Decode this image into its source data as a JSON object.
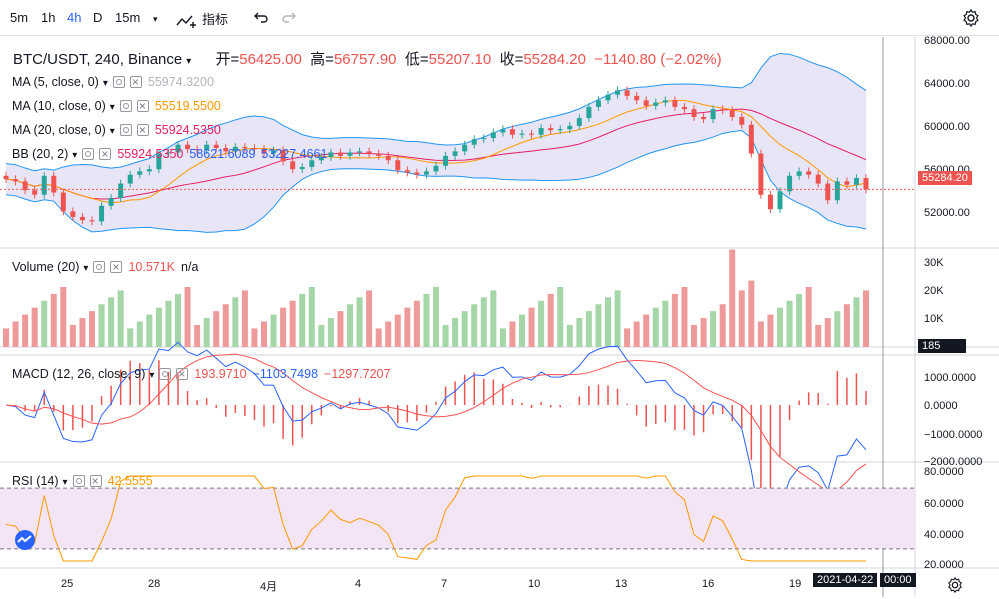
{
  "toolbar": {
    "timeframes": [
      "5m",
      "1h",
      "4h",
      "D",
      "15m"
    ],
    "active_timeframe": "4h",
    "indicators_label": "指标"
  },
  "symbol": {
    "title": "BTC/USDT, 240, Binance",
    "open_label": "开",
    "open": "56425.00",
    "high_label": "高",
    "high": "56757.90",
    "low_label": "低",
    "low": "55207.10",
    "close_label": "收",
    "close": "55284.20",
    "change": "−1140.80 (−2.02%)"
  },
  "legends": {
    "ma5": {
      "name": "MA (5, close, 0)",
      "value": "55974.3200",
      "color": "#c0c3cc"
    },
    "ma10": {
      "name": "MA (10, close, 0)",
      "value": "55519.5500",
      "color": "#ff9800"
    },
    "ma20": {
      "name": "MA (20, close, 0)",
      "value": "55924.5350",
      "color": "#e91e63"
    },
    "bb": {
      "name": "BB (20, 2)",
      "v1": "55924.5350",
      "v2": "58621.6089",
      "v3": "53227.4661"
    },
    "volume": {
      "name": "Volume (20)",
      "value": "10.571K",
      "extra": "n/a"
    },
    "macd": {
      "name": "MACD (12, 26, close, 9)",
      "v1": "193.9710",
      "v2": "−1103.7498",
      "v3": "−1297.7207"
    },
    "rsi": {
      "name": "RSI (14)",
      "value": "42.5555"
    }
  },
  "axes": {
    "price_ticks": [
      "68000.00",
      "64000.00",
      "60000.00",
      "56000.00",
      "52000.00"
    ],
    "current_price": "55284.20",
    "volume_ticks": [
      "30K",
      "20K",
      "10K"
    ],
    "volume_current": "185",
    "macd_ticks": [
      "1000.0000",
      "0.0000",
      "−1000.0000",
      "−2000.0000"
    ],
    "rsi_ticks": [
      "80.0000",
      "60.0000",
      "40.0000",
      "20.0000"
    ],
    "date_ticks": [
      "25",
      "28",
      "4月",
      "4",
      "7",
      "10",
      "13",
      "16",
      "19"
    ],
    "crosshair_date": "2021-04-22",
    "crosshair_time": "00:00"
  },
  "colors": {
    "up": "#26a69a",
    "down": "#ef5350",
    "vol_up": "#a5d6a7",
    "vol_down": "#ef9a9a",
    "bb_band": "#2196f3",
    "bb_fill": "#d8d4f0",
    "rsi_band": "#f3e5f5",
    "macd_line": "#2962ff",
    "signal_line": "#ff5252",
    "rsi_line": "#ff9800"
  },
  "chart_data": {
    "type": "candlestick",
    "title": "BTC/USDT, 240, Binance",
    "price_range": [
      50000,
      69000
    ],
    "closes_approx": [
      56200,
      56000,
      55200,
      54800,
      56500,
      55000,
      53300,
      52800,
      52500,
      52400,
      53800,
      54500,
      55800,
      56600,
      56900,
      57100,
      58500,
      58600,
      59300,
      58900,
      58800,
      59300,
      59000,
      58700,
      59100,
      59000,
      58900,
      58500,
      58800,
      57800,
      57100,
      57300,
      57900,
      58200,
      58600,
      58300,
      58600,
      58700,
      58500,
      58300,
      57900,
      57000,
      56800,
      56600,
      56900,
      57400,
      58300,
      58700,
      59300,
      59800,
      59900,
      60400,
      60700,
      60200,
      60300,
      60200,
      60800,
      60600,
      60700,
      61000,
      61700,
      62700,
      63300,
      63800,
      64200,
      63700,
      63300,
      62800,
      63100,
      63300,
      62700,
      62500,
      61800,
      61600,
      62500,
      62400,
      61800,
      61100,
      58500,
      54800,
      53500,
      55100,
      56500,
      56900,
      56600,
      55800,
      54300,
      56000,
      55700,
      56300,
      55284
    ]
  }
}
